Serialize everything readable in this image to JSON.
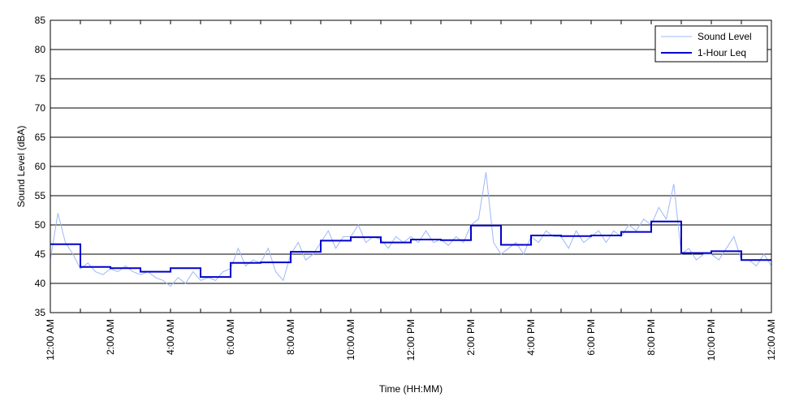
{
  "chart_data": {
    "type": "line",
    "xlabel": "Time (HH:MM)",
    "ylabel": "Sound Level (dBA)",
    "xlim": [
      0,
      24
    ],
    "ylim": [
      35,
      85
    ],
    "y_ticks": [
      35,
      40,
      45,
      50,
      55,
      60,
      65,
      70,
      75,
      80,
      85
    ],
    "x_ticks": [
      0,
      1,
      2,
      3,
      4,
      5,
      6,
      7,
      8,
      9,
      10,
      11,
      12,
      13,
      14,
      15,
      16,
      17,
      18,
      19,
      20,
      21,
      22,
      23,
      24
    ],
    "x_tick_labels": [
      {
        "x": 0,
        "label": "12:00 AM"
      },
      {
        "x": 2,
        "label": "2:00 AM"
      },
      {
        "x": 4,
        "label": "4:00 AM"
      },
      {
        "x": 6,
        "label": "6:00 AM"
      },
      {
        "x": 8,
        "label": "8:00 AM"
      },
      {
        "x": 10,
        "label": "10:00 AM"
      },
      {
        "x": 12,
        "label": "12:00 PM"
      },
      {
        "x": 14,
        "label": "2:00 PM"
      },
      {
        "x": 16,
        "label": "4:00 PM"
      },
      {
        "x": 18,
        "label": "6:00 PM"
      },
      {
        "x": 20,
        "label": "8:00 PM"
      },
      {
        "x": 22,
        "label": "10:00 PM"
      },
      {
        "x": 24,
        "label": "12:00 AM"
      }
    ],
    "grid": "horizontal",
    "legend": {
      "position": "top-right"
    },
    "series": [
      {
        "name": "Sound Level",
        "color": "#9db7f7",
        "style": "thin-line",
        "x": [
          0,
          0.25,
          0.5,
          0.75,
          1,
          1.25,
          1.5,
          1.75,
          2,
          2.25,
          2.5,
          2.75,
          3,
          3.25,
          3.5,
          3.75,
          4,
          4.25,
          4.5,
          4.75,
          5,
          5.25,
          5.5,
          5.75,
          6,
          6.25,
          6.5,
          6.75,
          7,
          7.25,
          7.5,
          7.75,
          8,
          8.25,
          8.5,
          8.75,
          9,
          9.25,
          9.5,
          9.75,
          10,
          10.25,
          10.5,
          10.75,
          11,
          11.25,
          11.5,
          11.75,
          12,
          12.25,
          12.5,
          12.75,
          13,
          13.25,
          13.5,
          13.75,
          14,
          14.25,
          14.5,
          14.75,
          15,
          15.25,
          15.5,
          15.75,
          16,
          16.25,
          16.5,
          16.75,
          17,
          17.25,
          17.5,
          17.75,
          18,
          18.25,
          18.5,
          18.75,
          19,
          19.25,
          19.5,
          19.75,
          20,
          20.25,
          20.5,
          20.75,
          21,
          21.25,
          21.5,
          21.75,
          22,
          22.25,
          22.5,
          22.75,
          23,
          23.25,
          23.5,
          23.75,
          24
        ],
        "values": [
          44,
          52,
          47,
          45,
          42.5,
          43.5,
          42,
          41.5,
          42.5,
          42,
          43,
          42,
          41.5,
          42,
          41,
          40.5,
          39.5,
          41,
          40,
          42,
          40.5,
          41,
          40.5,
          42,
          42.5,
          46,
          43,
          44,
          43.5,
          46,
          42,
          40.5,
          45,
          47,
          44,
          45,
          47,
          49,
          46,
          48,
          48,
          50,
          47,
          48,
          47.5,
          46,
          48,
          47,
          48,
          47,
          49,
          47,
          47.5,
          46.5,
          48,
          47,
          50,
          51,
          59,
          47,
          45,
          46,
          47,
          45,
          48,
          47,
          49,
          48,
          48,
          46,
          49,
          47,
          48,
          49,
          47,
          49,
          48,
          50,
          49,
          51,
          50,
          53,
          51,
          57,
          45,
          46,
          44,
          45,
          45,
          44,
          46,
          48,
          44,
          44,
          43,
          45,
          43
        ]
      },
      {
        "name": "1-Hour Leq",
        "color": "#0000cc",
        "style": "step",
        "x": [
          0,
          1,
          2,
          3,
          4,
          5,
          6,
          7,
          8,
          9,
          10,
          11,
          12,
          13,
          14,
          15,
          16,
          17,
          18,
          19,
          20,
          21,
          22,
          23
        ],
        "values": [
          46.7,
          42.8,
          42.6,
          42.0,
          42.6,
          41.1,
          43.5,
          43.6,
          45.4,
          47.3,
          47.9,
          47.0,
          47.5,
          47.4,
          49.9,
          46.6,
          48.2,
          48.1,
          48.2,
          48.8,
          50.6,
          45.2,
          45.5,
          44.0
        ]
      }
    ]
  }
}
